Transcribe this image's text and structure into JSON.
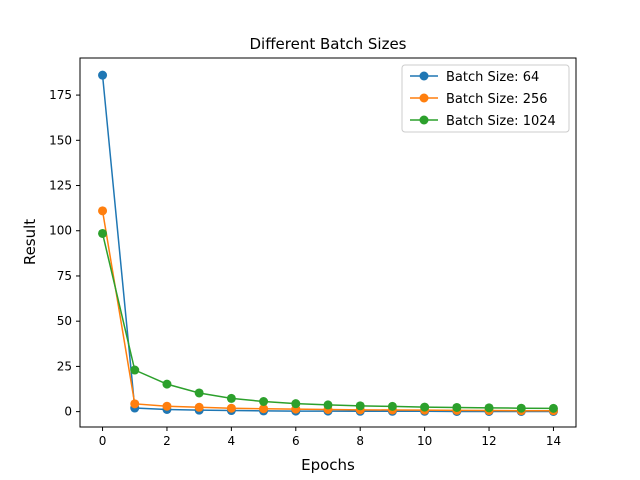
{
  "chart_data": {
    "type": "line",
    "title": "Different Batch Sizes",
    "xlabel": "Epochs",
    "ylabel": "Result",
    "xlim": [
      -0.7,
      14.7
    ],
    "ylim": [
      -8.5,
      195.5
    ],
    "xticks": [
      0,
      2,
      4,
      6,
      8,
      10,
      12,
      14
    ],
    "yticks": [
      0,
      25,
      50,
      75,
      100,
      125,
      150,
      175
    ],
    "grid": false,
    "legend_position": "top-right",
    "x": [
      0,
      1,
      2,
      3,
      4,
      5,
      6,
      7,
      8,
      9,
      10,
      11,
      12,
      13,
      14
    ],
    "series": [
      {
        "name": "Batch Size: 64",
        "color": "#1f77b4",
        "values": [
          186,
          2.0,
          1.2,
          0.8,
          0.6,
          0.4,
          0.3,
          0.3,
          0.2,
          0.2,
          0.2,
          0.1,
          0.1,
          0.1,
          0.1
        ]
      },
      {
        "name": "Batch Size: 256",
        "color": "#ff7f0e",
        "values": [
          111,
          4.3,
          3.0,
          2.4,
          1.9,
          1.6,
          1.4,
          1.2,
          1.0,
          0.9,
          0.8,
          0.7,
          0.6,
          0.5,
          0.5
        ]
      },
      {
        "name": "Batch Size: 1024",
        "color": "#2ca02c",
        "values": [
          98.5,
          23.0,
          15.2,
          10.3,
          7.3,
          5.6,
          4.4,
          3.7,
          3.2,
          2.9,
          2.5,
          2.3,
          2.1,
          1.9,
          1.8
        ]
      }
    ]
  }
}
